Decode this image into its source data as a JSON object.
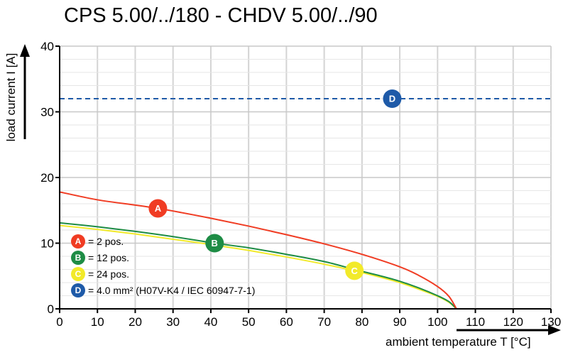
{
  "title": "CPS 5.00/../180 - CHDV 5.00/../90",
  "chart_data": {
    "type": "line",
    "xlabel": "ambient temperature T [°C]",
    "ylabel": "load current I [A]",
    "xlim": [
      0,
      130
    ],
    "ylim": [
      0,
      40
    ],
    "xticks": [
      0,
      10,
      20,
      30,
      40,
      50,
      60,
      70,
      80,
      90,
      100,
      110,
      120,
      130
    ],
    "yticks": [
      0,
      10,
      20,
      30,
      40
    ],
    "grid": true,
    "series": [
      {
        "name": "A",
        "color": "#f03c23",
        "x": [
          0,
          10,
          20,
          26,
          30,
          40,
          50,
          60,
          70,
          80,
          90,
          95,
          100,
          103,
          105
        ],
        "y": [
          17.8,
          16.6,
          15.8,
          15.3,
          14.9,
          13.8,
          12.6,
          11.3,
          9.9,
          8.3,
          6.4,
          5.1,
          3.4,
          1.9,
          0
        ]
      },
      {
        "name": "B",
        "color": "#1e8c45",
        "x": [
          0,
          10,
          20,
          30,
          41,
          50,
          60,
          70,
          78,
          85,
          90,
          95,
          100,
          103,
          105
        ],
        "y": [
          13.1,
          12.5,
          11.8,
          11.0,
          10.0,
          9.3,
          8.3,
          7.2,
          6.0,
          5.0,
          4.2,
          3.2,
          2.0,
          1.1,
          0
        ]
      },
      {
        "name": "C",
        "color": "#f2ea2a",
        "x": [
          0,
          10,
          20,
          30,
          40,
          50,
          60,
          70,
          78,
          85,
          90,
          95,
          100,
          103,
          105
        ],
        "y": [
          12.7,
          12.1,
          11.4,
          10.6,
          9.8,
          8.9,
          7.9,
          6.8,
          5.8,
          4.8,
          4.0,
          3.0,
          1.9,
          1.0,
          0
        ]
      },
      {
        "name": "D",
        "color": "#1e5aa8",
        "dashed": true,
        "x": [
          0,
          130
        ],
        "y": [
          32,
          32
        ]
      }
    ],
    "markers": [
      {
        "label": "A",
        "x": 26,
        "y": 15.3,
        "color": "#f03c23"
      },
      {
        "label": "B",
        "x": 41,
        "y": 10.0,
        "color": "#1e8c45"
      },
      {
        "label": "C",
        "x": 78,
        "y": 5.8,
        "color": "#f2ea2a"
      },
      {
        "label": "D",
        "x": 88,
        "y": 32,
        "color": "#1e5aa8"
      }
    ],
    "legend": [
      {
        "badge": "A",
        "text": "= 2 pos.",
        "color": "#f03c23"
      },
      {
        "badge": "B",
        "text": "= 12 pos.",
        "color": "#1e8c45"
      },
      {
        "badge": "C",
        "text": "= 24 pos.",
        "color": "#f2ea2a"
      },
      {
        "badge": "D",
        "text": "= 4.0 mm² (H07V-K4 / IEC 60947-7-1)",
        "color": "#1e5aa8"
      }
    ],
    "legend_position": "bottom-left"
  }
}
